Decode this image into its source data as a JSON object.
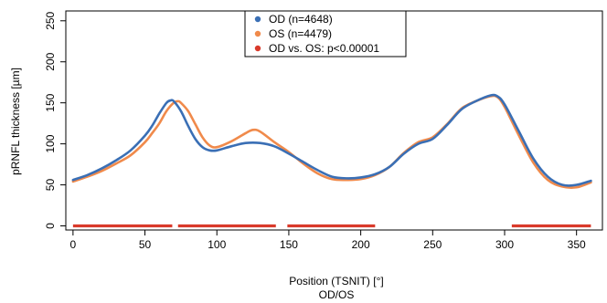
{
  "chart_data": {
    "type": "line",
    "xlabel": "Position (TSNIT) [°]",
    "xlabel_sub": "OD/OS",
    "ylabel": "pRNFL thickness [µm]",
    "xlim": [
      -5,
      368
    ],
    "ylim": [
      -5,
      262
    ],
    "x_ticks": [
      0,
      50,
      100,
      150,
      200,
      250,
      300,
      350
    ],
    "y_ticks": [
      0,
      50,
      100,
      150,
      200,
      250
    ],
    "legend_position": "top-center",
    "series": [
      {
        "name": "OD (n=4648)",
        "color": "#3a6fb5",
        "x": [
          0,
          10,
          20,
          30,
          40,
          50,
          55,
          60,
          65,
          68,
          70,
          75,
          80,
          85,
          90,
          95,
          100,
          110,
          120,
          130,
          140,
          150,
          160,
          170,
          180,
          190,
          200,
          210,
          220,
          230,
          240,
          250,
          260,
          270,
          280,
          290,
          295,
          300,
          310,
          320,
          330,
          340,
          350,
          360
        ],
        "values": [
          56,
          62,
          70,
          80,
          92,
          110,
          122,
          137,
          150,
          153,
          152,
          140,
          122,
          106,
          96,
          92,
          92,
          97,
          101,
          101,
          97,
          88,
          78,
          68,
          60,
          58,
          59,
          63,
          72,
          88,
          100,
          106,
          123,
          142,
          152,
          159,
          158,
          148,
          115,
          82,
          60,
          50,
          50,
          55
        ]
      },
      {
        "name": "OS (n=4479)",
        "color": "#f08a4b",
        "x": [
          0,
          10,
          20,
          30,
          40,
          50,
          55,
          60,
          65,
          70,
          73,
          75,
          80,
          85,
          90,
          95,
          100,
          110,
          120,
          125,
          130,
          140,
          150,
          160,
          170,
          180,
          190,
          200,
          210,
          220,
          230,
          240,
          250,
          260,
          270,
          280,
          290,
          295,
          300,
          310,
          320,
          330,
          340,
          350,
          360
        ],
        "values": [
          54,
          60,
          67,
          76,
          86,
          102,
          113,
          125,
          140,
          150,
          152,
          150,
          140,
          124,
          108,
          98,
          96,
          103,
          113,
          117,
          115,
          102,
          90,
          76,
          64,
          57,
          56,
          57,
          62,
          72,
          89,
          102,
          108,
          124,
          143,
          152,
          158,
          157,
          145,
          110,
          77,
          56,
          48,
          47,
          53
        ]
      }
    ],
    "significance": {
      "name": "OD vs. OS: p<0.00001",
      "color": "#d93a2b",
      "y": 0,
      "segments": [
        [
          0,
          69
        ],
        [
          73,
          141
        ],
        [
          149,
          210
        ],
        [
          305,
          360
        ]
      ]
    }
  }
}
